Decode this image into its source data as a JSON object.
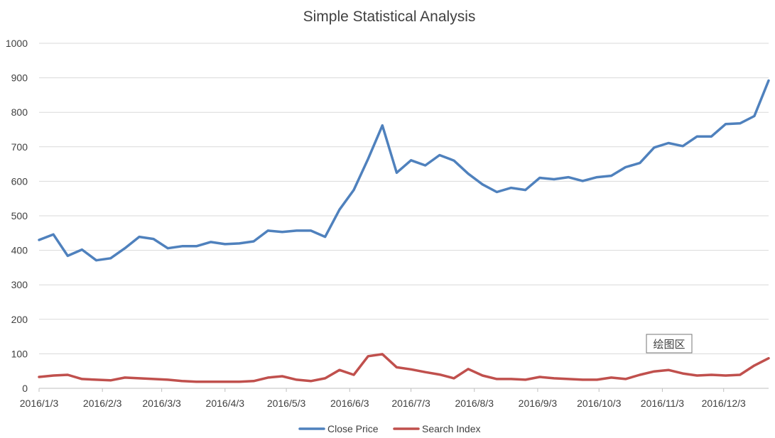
{
  "chart_data": {
    "type": "line",
    "title": "Simple Statistical Analysis",
    "xlabel": "",
    "ylabel": "",
    "ylim": [
      0,
      1000
    ],
    "yticks": [
      0,
      100,
      200,
      300,
      400,
      500,
      600,
      700,
      800,
      900,
      1000
    ],
    "grid": true,
    "legend_position": "bottom",
    "x_tick_labels": [
      "2016/1/3",
      "2016/2/3",
      "2016/3/3",
      "2016/4/3",
      "2016/5/3",
      "2016/6/3",
      "2016/7/3",
      "2016/8/3",
      "2016/9/3",
      "2016/10/3",
      "2016/11/3",
      "2016/12/3"
    ],
    "x": [
      "2016/1/3",
      "2016/1/10",
      "2016/1/17",
      "2016/1/24",
      "2016/1/31",
      "2016/2/7",
      "2016/2/14",
      "2016/2/21",
      "2016/2/28",
      "2016/3/6",
      "2016/3/13",
      "2016/3/20",
      "2016/3/27",
      "2016/4/3",
      "2016/4/10",
      "2016/4/17",
      "2016/4/24",
      "2016/5/1",
      "2016/5/8",
      "2016/5/15",
      "2016/5/22",
      "2016/5/29",
      "2016/6/5",
      "2016/6/12",
      "2016/6/19",
      "2016/6/26",
      "2016/7/3",
      "2016/7/10",
      "2016/7/17",
      "2016/7/24",
      "2016/7/31",
      "2016/8/7",
      "2016/8/14",
      "2016/8/21",
      "2016/8/28",
      "2016/9/4",
      "2016/9/11",
      "2016/9/18",
      "2016/9/25",
      "2016/10/2",
      "2016/10/9",
      "2016/10/16",
      "2016/10/23",
      "2016/10/30",
      "2016/11/6",
      "2016/11/13",
      "2016/11/20",
      "2016/11/27",
      "2016/12/4",
      "2016/12/11",
      "2016/12/18",
      "2016/12/25"
    ],
    "series": [
      {
        "name": "Close Price",
        "color": "#4f81bd",
        "values": [
          430,
          446,
          384,
          402,
          371,
          377,
          406,
          439,
          433,
          406,
          412,
          412,
          424,
          418,
          420,
          426,
          457,
          453,
          457,
          457,
          439,
          518,
          575,
          665,
          762,
          625,
          661,
          646,
          676,
          660,
          622,
          591,
          569,
          581,
          575,
          610,
          606,
          612,
          601,
          612,
          616,
          641,
          653,
          698,
          711,
          702,
          730,
          730,
          766,
          768,
          789,
          892
        ]
      },
      {
        "name": "Search Index",
        "color": "#c0504d",
        "values": [
          33,
          37,
          39,
          27,
          25,
          23,
          31,
          29,
          27,
          25,
          21,
          19,
          19,
          19,
          19,
          21,
          31,
          35,
          25,
          21,
          29,
          53,
          39,
          93,
          99,
          61,
          55,
          47,
          40,
          29,
          56,
          37,
          27,
          27,
          25,
          33,
          29,
          27,
          25,
          25,
          31,
          27,
          39,
          49,
          53,
          43,
          37,
          39,
          37,
          39,
          66,
          87
        ]
      }
    ],
    "annotation": "绘图区"
  }
}
